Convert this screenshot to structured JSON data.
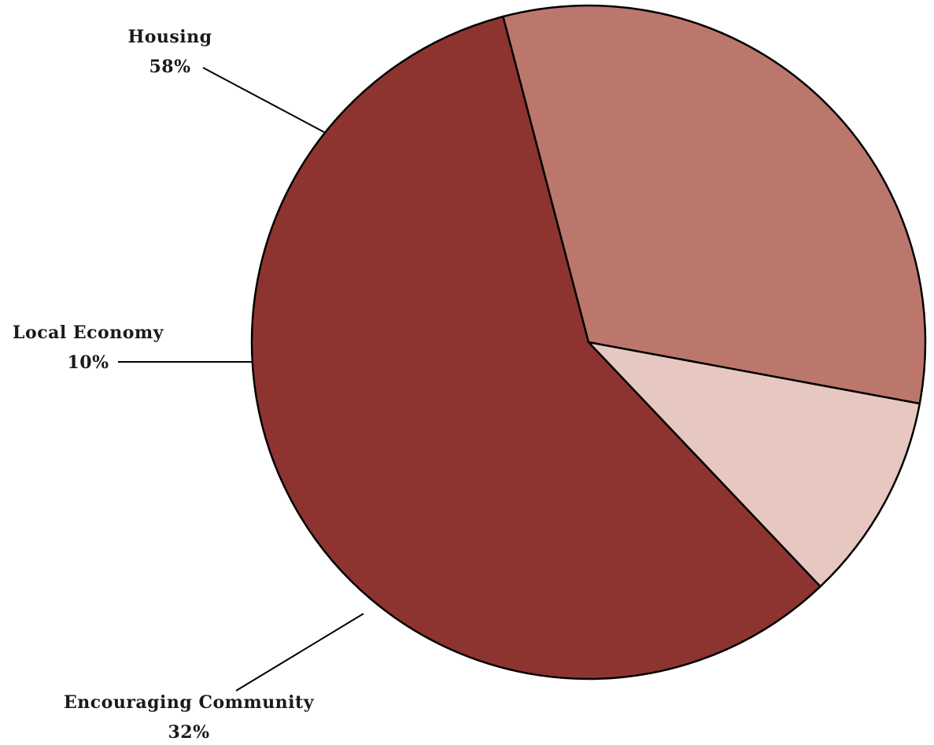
{
  "chart_data": {
    "type": "pie",
    "title": "",
    "slices": [
      {
        "label": "Housing",
        "value": 58,
        "value_label": "58%",
        "color": "#8e3430"
      },
      {
        "label": "Encouraging Community",
        "value": 32,
        "value_label": "32%",
        "color": "#bc776d"
      },
      {
        "label": "Local Economy",
        "value": 10,
        "value_label": "10%",
        "color": "#e6c8c1"
      }
    ],
    "legend": "none",
    "labels": "outside with leader lines"
  }
}
